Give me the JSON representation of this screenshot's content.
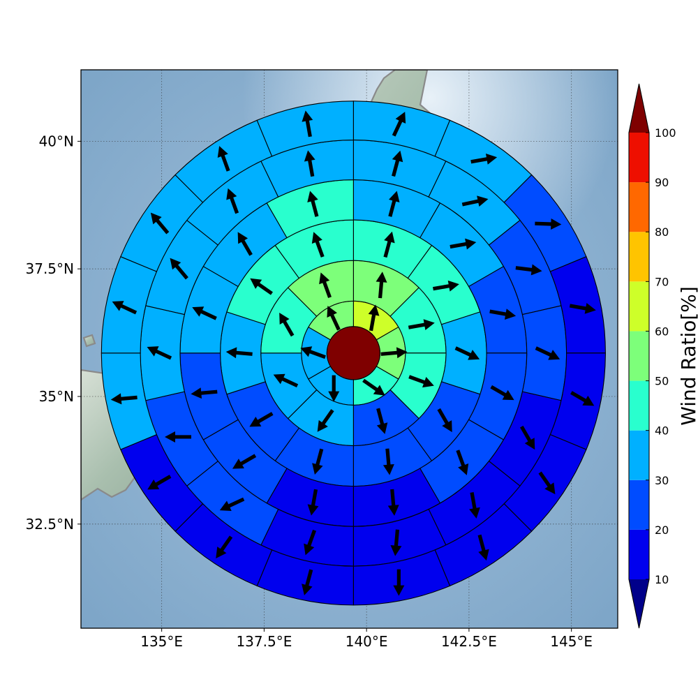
{
  "map": {
    "x_ticks": [
      "135°E",
      "137.5°E",
      "140°E",
      "142.5°E",
      "145°E"
    ],
    "x_tick_values": [
      135,
      137.5,
      140,
      142.5,
      145
    ],
    "y_ticks": [
      "40°N",
      "37.5°N",
      "35°N",
      "32.5°N"
    ],
    "y_tick_values": [
      40,
      37.5,
      35,
      32.5
    ],
    "lon_range": [
      133.03,
      146.13
    ],
    "lat_range": [
      30.46,
      41.4
    ],
    "center": {
      "lon": 139.68,
      "lat": 35.85
    },
    "ring_outer_radius_deg": [
      1.27,
      2.26,
      3.25,
      4.23,
      5.2,
      6.15
    ],
    "grid": true,
    "coastline_color": "#8a8a8a",
    "center_color": "#7f0000"
  },
  "colorbar": {
    "label": "Wind Ratio[%]",
    "ticks": [
      "10",
      "20",
      "30",
      "40",
      "50",
      "60",
      "70",
      "80",
      "90",
      "100"
    ],
    "bins": [
      {
        "min": 10,
        "max": 20,
        "color": "#0000ee"
      },
      {
        "min": 20,
        "max": 30,
        "color": "#004cff"
      },
      {
        "min": 30,
        "max": 40,
        "color": "#00b0ff"
      },
      {
        "min": 40,
        "max": 50,
        "color": "#29ffce"
      },
      {
        "min": 50,
        "max": 60,
        "color": "#7dff7a"
      },
      {
        "min": 60,
        "max": 70,
        "color": "#ceff29"
      },
      {
        "min": 70,
        "max": 80,
        "color": "#ffc400"
      },
      {
        "min": 80,
        "max": 90,
        "color": "#ff6800"
      },
      {
        "min": 90,
        "max": 100,
        "color": "#ee0f00"
      }
    ],
    "under_color": "#00008a",
    "over_color": "#7f0000"
  },
  "chart_data": {
    "type": "heatmap",
    "description_of_cells": "polar sectors: ring index from center outward, sector index clockwise from north",
    "rings": [
      {
        "sectors": 6,
        "wind_ratio": [
          65,
          55,
          45,
          35,
          35,
          55
        ],
        "wind_dir_deg": [
          10,
          85,
          125,
          180,
          290,
          335
        ]
      },
      {
        "sectors": 8,
        "wind_ratio": [
          55,
          45,
          45,
          25,
          35,
          35,
          45,
          55
        ],
        "wind_dir_deg": [
          5,
          80,
          110,
          165,
          215,
          295,
          330,
          340
        ]
      },
      {
        "sectors": 10,
        "wind_ratio": [
          45,
          45,
          35,
          25,
          25,
          25,
          25,
          35,
          45,
          45
        ],
        "wind_dir_deg": [
          15,
          80,
          115,
          150,
          175,
          195,
          240,
          275,
          305,
          340
        ]
      },
      {
        "sectors": 12,
        "wind_ratio": [
          35,
          35,
          25,
          25,
          25,
          15,
          15,
          25,
          25,
          35,
          35,
          45
        ],
        "wind_dir_deg": [
          15,
          80,
          100,
          120,
          160,
          175,
          190,
          240,
          265,
          295,
          330,
          345
        ]
      },
      {
        "sectors": 14,
        "wind_ratio": [
          35,
          35,
          25,
          25,
          15,
          15,
          15,
          15,
          25,
          25,
          35,
          35,
          35,
          35
        ],
        "wind_dir_deg": [
          15,
          78,
          97,
          115,
          150,
          170,
          185,
          200,
          245,
          270,
          295,
          320,
          340,
          350
        ]
      },
      {
        "sectors": 16,
        "wind_ratio": [
          35,
          35,
          25,
          15,
          15,
          15,
          15,
          15,
          15,
          15,
          15,
          35,
          35,
          35,
          35,
          35
        ],
        "wind_dir_deg": [
          25,
          80,
          92,
          100,
          120,
          145,
          165,
          180,
          195,
          215,
          240,
          265,
          295,
          320,
          340,
          350
        ]
      }
    ],
    "center_wind_ratio": 100
  }
}
